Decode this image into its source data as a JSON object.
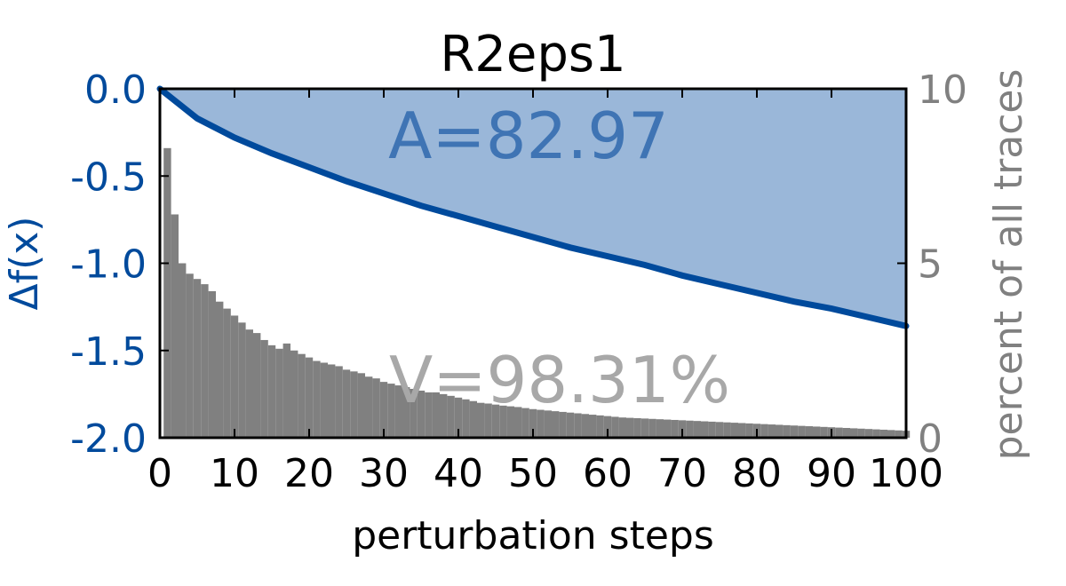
{
  "chart_data": {
    "type": "line",
    "title": "R2eps1",
    "xlabel": "perturbation steps",
    "ylabel": "Δf(x)",
    "ylabel_right": "percent of all traces",
    "xlim": [
      0,
      100
    ],
    "ylim": [
      -2.0,
      0.0
    ],
    "ylim_right": [
      0,
      10
    ],
    "x_ticks": [
      "0",
      "10",
      "20",
      "30",
      "40",
      "50",
      "60",
      "70",
      "80",
      "90",
      "100"
    ],
    "y_ticks": [
      "0.0",
      "-0.5",
      "-1.0",
      "-1.5",
      "-2.0"
    ],
    "y_ticks_right": [
      "10",
      "5",
      "0"
    ],
    "annotations": {
      "area": "A=82.97",
      "variance": "V=98.31%"
    },
    "line": {
      "x": [
        0,
        5,
        10,
        15,
        20,
        25,
        30,
        35,
        40,
        45,
        50,
        55,
        60,
        65,
        70,
        75,
        80,
        85,
        90,
        95,
        100
      ],
      "y": [
        0.0,
        -0.17,
        -0.28,
        -0.37,
        -0.45,
        -0.53,
        -0.6,
        -0.67,
        -0.73,
        -0.79,
        -0.85,
        -0.91,
        -0.96,
        -1.01,
        -1.07,
        -1.12,
        -1.17,
        -1.22,
        -1.26,
        -1.31,
        -1.36
      ]
    },
    "histogram": {
      "bin_width": 1,
      "values": [
        8.3,
        6.4,
        5.0,
        4.7,
        4.55,
        4.4,
        4.2,
        3.9,
        3.7,
        3.5,
        3.3,
        3.1,
        3.0,
        2.8,
        2.65,
        2.55,
        2.7,
        2.5,
        2.4,
        2.3,
        2.2,
        2.15,
        2.1,
        2.05,
        1.95,
        1.9,
        1.85,
        1.75,
        1.7,
        1.6,
        1.55,
        1.5,
        1.45,
        1.4,
        1.35,
        1.3,
        1.3,
        1.25,
        1.2,
        1.15,
        1.1,
        1.05,
        1.0,
        0.98,
        0.95,
        0.92,
        0.9,
        0.88,
        0.85,
        0.82,
        0.8,
        0.78,
        0.76,
        0.74,
        0.72,
        0.7,
        0.68,
        0.66,
        0.64,
        0.62,
        0.6,
        0.58,
        0.57,
        0.56,
        0.55,
        0.54,
        0.53,
        0.52,
        0.51,
        0.5,
        0.49,
        0.48,
        0.47,
        0.46,
        0.45,
        0.44,
        0.43,
        0.42,
        0.41,
        0.4,
        0.39,
        0.38,
        0.37,
        0.36,
        0.35,
        0.34,
        0.33,
        0.32,
        0.31,
        0.3,
        0.29,
        0.28,
        0.27,
        0.26,
        0.25,
        0.24,
        0.23,
        0.22,
        0.21,
        0.2
      ]
    },
    "grid": false,
    "colors": {
      "line": "#004a9c",
      "fill": "#9ab7d9",
      "bars": "#808080",
      "left_axis_text": "#004a9c",
      "right_axis_text": "#808080",
      "area_annotation": "#3f74b4",
      "variance_annotation": "#a8a8a8"
    }
  }
}
